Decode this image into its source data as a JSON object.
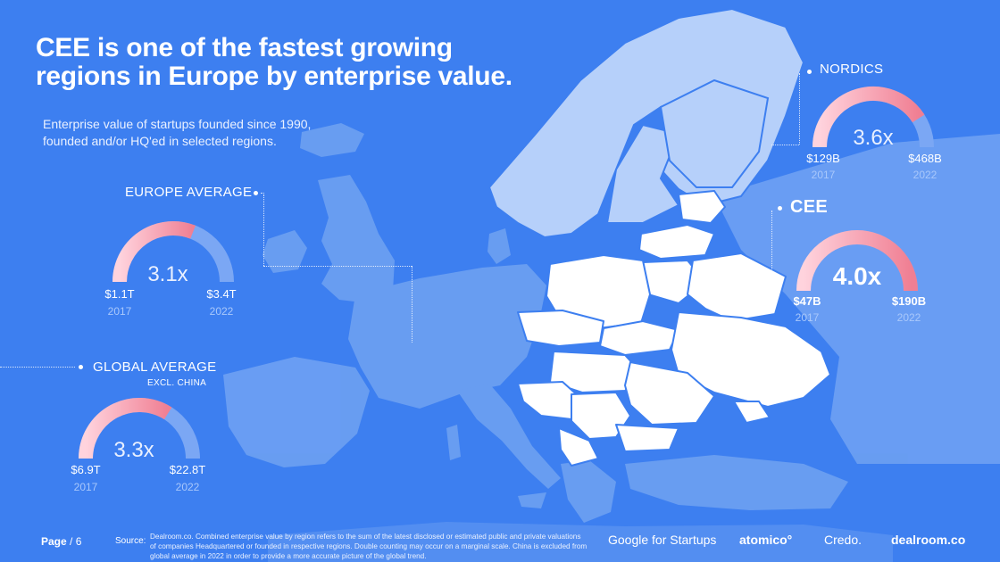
{
  "title_line1": "CEE is one of the fastest growing",
  "title_line2": "regions in Europe by enterprise value.",
  "subtitle_line1": "Enterprise value of startups founded since 1990,",
  "subtitle_line2": "founded and/or HQ'ed in selected regions.",
  "regions": {
    "europe": {
      "label": "EUROPE AVERAGE",
      "multiple": "3.1x",
      "start_value": "$1.1T",
      "start_year": "2017",
      "end_value": "$3.4T",
      "end_year": "2022",
      "gauge_fill": 0.62
    },
    "global": {
      "label": "GLOBAL AVERAGE",
      "sublabel": "EXCL. CHINA",
      "multiple": "3.3x",
      "start_value": "$6.9T",
      "start_year": "2017",
      "end_value": "$22.8T",
      "end_year": "2022",
      "gauge_fill": 0.68
    },
    "nordics": {
      "label": "NORDICS",
      "multiple": "3.6x",
      "start_value": "$129B",
      "start_year": "2017",
      "end_value": "$468B",
      "end_year": "2022",
      "gauge_fill": 0.82
    },
    "cee": {
      "label": "CEE",
      "multiple": "4.0x",
      "start_value": "$47B",
      "start_year": "2017",
      "end_value": "$190B",
      "end_year": "2022",
      "gauge_fill": 1.0
    }
  },
  "footer": {
    "page_label": "Page",
    "page_number": "/ 6",
    "source_label": "Source:",
    "source_text": "Dealroom.co. Combined enterprise value by region refers to the sum of the latest disclosed or estimated public and private valuations of companies Headquartered or founded in respective regions. Double counting may occur on a marginal scale. China is excluded from global average in 2022 in order to provide a more accurate picture of the global trend.",
    "logos": [
      "Google for Startups",
      "atomico°",
      "Credo.",
      "dealroom.co"
    ]
  },
  "colors": {
    "background": "#3d7ff0",
    "map_land": "#6b9ff2",
    "nordics_land": "#b6d0fa",
    "cee_land": "#ffffff",
    "gauge_track": "#7ba7f4",
    "gauge_gradient_start": "#f07f93",
    "gauge_gradient_end": "#ffd3dd"
  }
}
